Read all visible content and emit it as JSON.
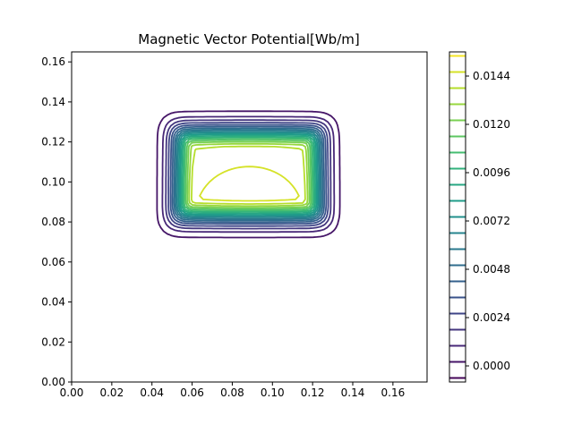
{
  "chart_data": {
    "type": "contour",
    "title": "Magnetic Vector Potential[Wb/m]",
    "xlabel": "",
    "ylabel": "",
    "xlim": [
      0.0,
      0.177
    ],
    "ylim": [
      0.0,
      0.165
    ],
    "xticks": [
      0.0,
      0.02,
      0.04,
      0.06,
      0.08,
      0.1,
      0.12,
      0.14,
      0.16
    ],
    "xtick_labels": [
      "0.00",
      "0.02",
      "0.04",
      "0.06",
      "0.08",
      "0.10",
      "0.12",
      "0.14",
      "0.16"
    ],
    "yticks": [
      0.0,
      0.02,
      0.04,
      0.06,
      0.08,
      0.1,
      0.12,
      0.14,
      0.16
    ],
    "ytick_labels": [
      "0.00",
      "0.02",
      "0.04",
      "0.06",
      "0.08",
      "0.10",
      "0.12",
      "0.14",
      "0.16"
    ],
    "levels_min": -0.0006,
    "levels_step": 0.0008,
    "levels_count": 21,
    "core": {
      "x": [
        0.062,
        0.114
      ],
      "y": [
        0.092,
        0.116
      ],
      "max": 0.0154
    },
    "colorbar": {
      "range": [
        -0.0008,
        0.0156
      ],
      "ticks": [
        0.0,
        0.0024,
        0.0048,
        0.0072,
        0.0096,
        0.012,
        0.0144
      ],
      "tick_labels": [
        "0.0000",
        "0.0024",
        "0.0048",
        "0.0072",
        "0.0096",
        "0.0120",
        "0.0144"
      ]
    },
    "colormap": "viridis",
    "grid": false,
    "legend": "colorbar-right"
  }
}
